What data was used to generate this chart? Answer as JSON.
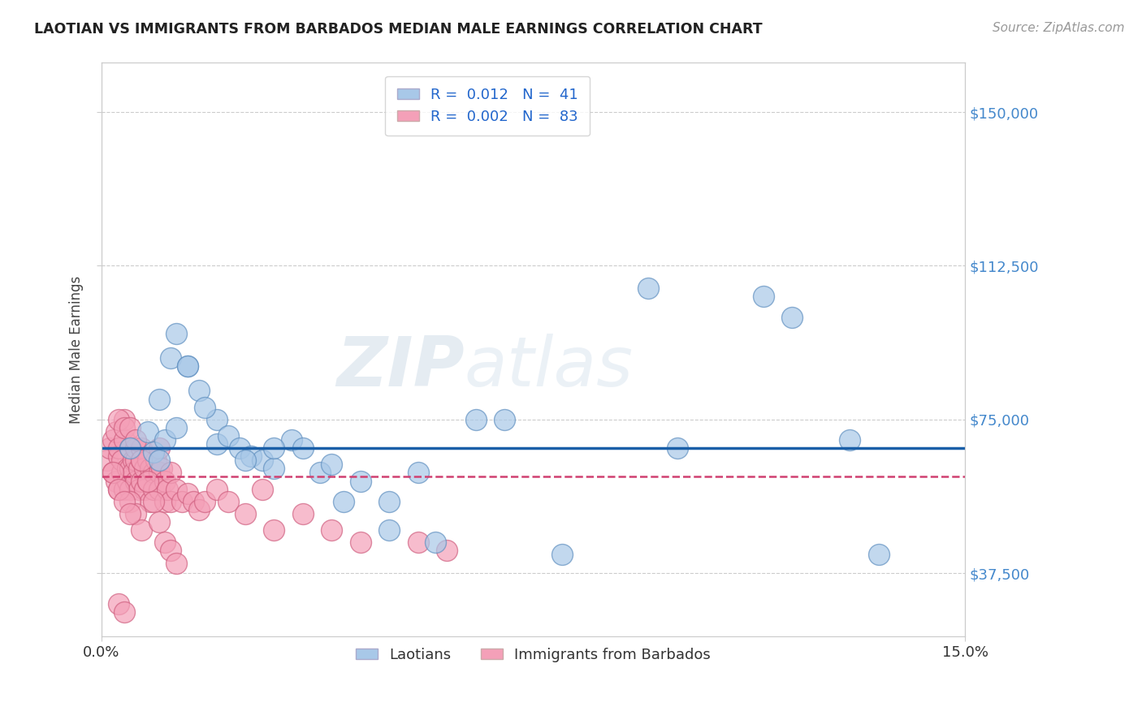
{
  "title": "LAOTIAN VS IMMIGRANTS FROM BARBADOS MEDIAN MALE EARNINGS CORRELATION CHART",
  "source": "Source: ZipAtlas.com",
  "ylabel": "Median Male Earnings",
  "yticks": [
    37500,
    75000,
    112500,
    150000
  ],
  "ytick_labels": [
    "$37,500",
    "$75,000",
    "$112,500",
    "$150,000"
  ],
  "xlim": [
    0.0,
    15.0
  ],
  "ylim": [
    22000,
    162000
  ],
  "blue_mean": 68000,
  "pink_mean": 61000,
  "blue_color": "#a8c8e8",
  "pink_color": "#f4a0b8",
  "blue_edge": "#6090c0",
  "pink_edge": "#d06080",
  "blue_line_color": "#1a5fa8",
  "pink_line_color": "#d04070",
  "blue_scatter_x": [
    0.5,
    0.8,
    0.9,
    1.0,
    1.0,
    1.1,
    1.2,
    1.3,
    1.5,
    1.7,
    2.0,
    2.0,
    2.2,
    2.4,
    2.6,
    2.8,
    3.0,
    3.3,
    3.5,
    3.8,
    4.0,
    4.5,
    5.0,
    5.0,
    5.5,
    6.5,
    7.0,
    8.0,
    9.5,
    10.0,
    11.5,
    12.0,
    13.0,
    13.5,
    1.3,
    1.5,
    1.8,
    2.5,
    3.0,
    4.2,
    5.8
  ],
  "blue_scatter_y": [
    68000,
    72000,
    67000,
    65000,
    80000,
    70000,
    90000,
    73000,
    88000,
    82000,
    69000,
    75000,
    71000,
    68000,
    66000,
    65000,
    63000,
    70000,
    68000,
    62000,
    64000,
    60000,
    55000,
    48000,
    62000,
    75000,
    75000,
    42000,
    107000,
    68000,
    105000,
    100000,
    70000,
    42000,
    96000,
    88000,
    78000,
    65000,
    68000,
    55000,
    45000
  ],
  "pink_scatter_x": [
    0.1,
    0.15,
    0.2,
    0.2,
    0.25,
    0.25,
    0.3,
    0.3,
    0.3,
    0.35,
    0.35,
    0.4,
    0.4,
    0.4,
    0.45,
    0.45,
    0.5,
    0.5,
    0.5,
    0.55,
    0.55,
    0.6,
    0.6,
    0.6,
    0.65,
    0.65,
    0.7,
    0.7,
    0.7,
    0.75,
    0.75,
    0.8,
    0.8,
    0.85,
    0.85,
    0.9,
    0.9,
    0.95,
    1.0,
    1.0,
    1.0,
    1.05,
    1.1,
    1.1,
    1.15,
    1.2,
    1.2,
    1.3,
    1.4,
    1.5,
    1.6,
    1.7,
    1.8,
    2.0,
    2.2,
    2.5,
    2.8,
    3.0,
    3.5,
    4.0,
    4.5,
    5.5,
    6.0,
    0.5,
    0.6,
    0.7,
    0.3,
    0.4,
    0.5,
    0.6,
    0.7,
    0.8,
    0.9,
    1.0,
    1.1,
    1.2,
    1.3,
    0.2,
    0.3,
    0.4,
    0.5,
    0.3,
    0.4
  ],
  "pink_scatter_y": [
    65000,
    68000,
    62000,
    70000,
    60000,
    72000,
    66000,
    58000,
    68000,
    62000,
    65000,
    70000,
    58000,
    75000,
    63000,
    60000,
    68000,
    63000,
    58000,
    65000,
    62000,
    60000,
    65000,
    68000,
    63000,
    58000,
    65000,
    60000,
    68000,
    63000,
    58000,
    65000,
    60000,
    63000,
    55000,
    62000,
    58000,
    65000,
    68000,
    62000,
    58000,
    63000,
    55000,
    60000,
    58000,
    62000,
    55000,
    58000,
    55000,
    57000,
    55000,
    53000,
    55000,
    58000,
    55000,
    52000,
    58000,
    48000,
    52000,
    48000,
    45000,
    45000,
    43000,
    55000,
    52000,
    48000,
    75000,
    73000,
    73000,
    70000,
    65000,
    60000,
    55000,
    50000,
    45000,
    43000,
    40000,
    62000,
    58000,
    55000,
    52000,
    30000,
    28000
  ]
}
